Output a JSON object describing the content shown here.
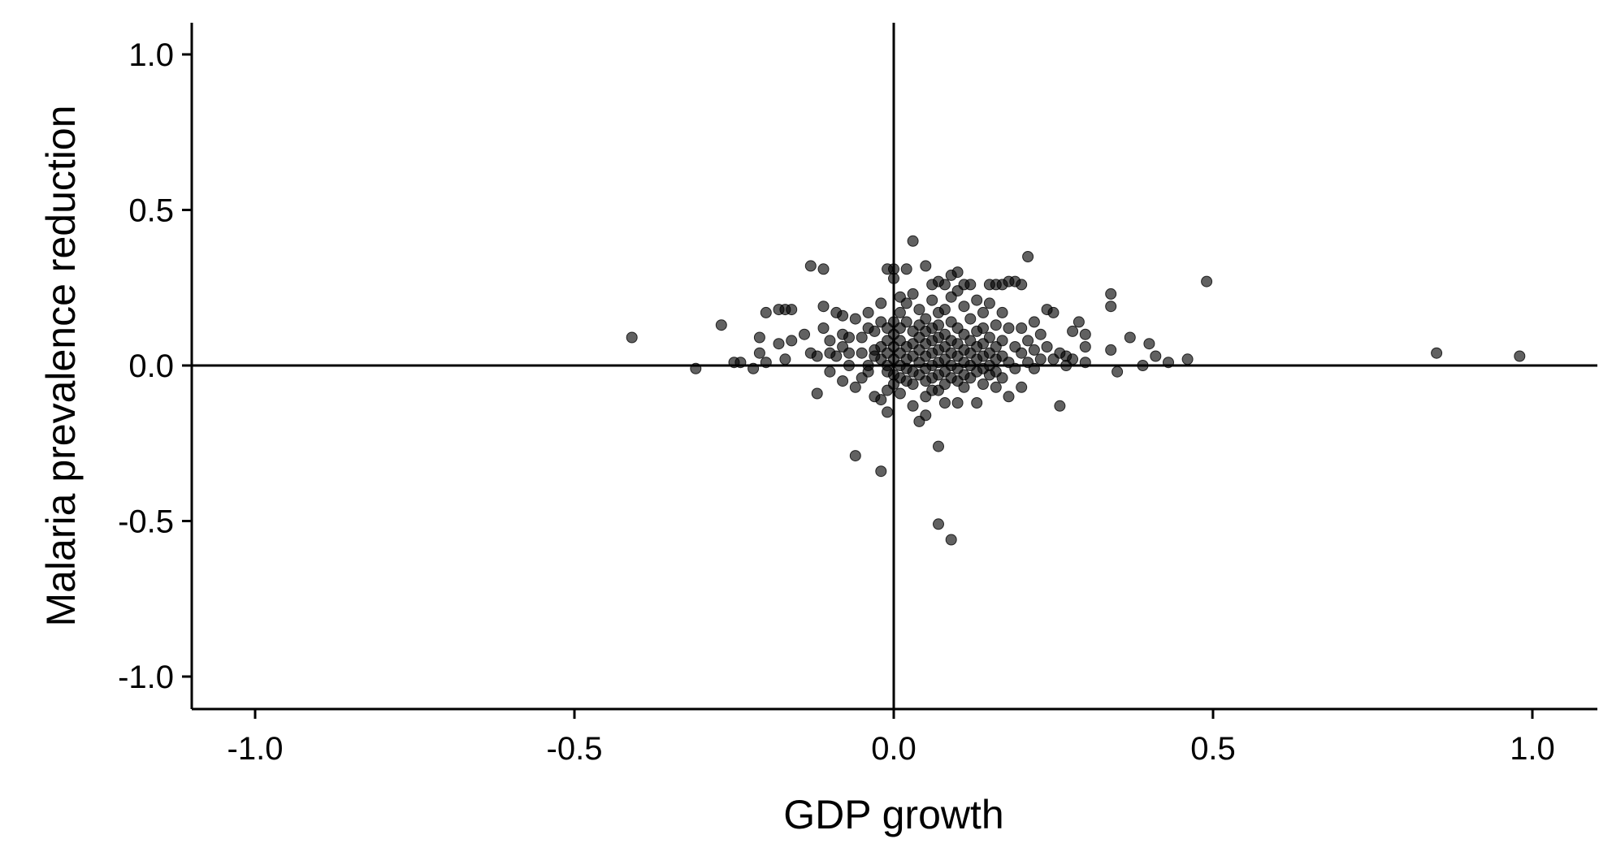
{
  "chart_data": {
    "type": "scatter",
    "title": "",
    "xlabel": "GDP growth",
    "ylabel": "Malaria prevalence reduction",
    "xlim": [
      -1.1,
      1.1
    ],
    "ylim": [
      -1.1,
      1.1
    ],
    "x_ticks": [
      -1.0,
      -0.5,
      0.0,
      0.5,
      1.0
    ],
    "y_ticks": [
      -1.0,
      -0.5,
      0.0,
      0.5,
      1.0
    ],
    "x_tick_labels": [
      "-1.0",
      "-0.5",
      "0.0",
      "0.5",
      "1.0"
    ],
    "y_tick_labels": [
      "-1.0",
      "-0.5",
      "0.0",
      "0.5",
      "1.0"
    ],
    "reference_lines": {
      "x": 0,
      "y": 0
    },
    "grid": false,
    "legend": "none",
    "point_color": "#000000",
    "points": [
      [
        -0.41,
        0.09
      ],
      [
        -0.31,
        -0.01
      ],
      [
        -0.27,
        0.13
      ],
      [
        -0.25,
        0.01
      ],
      [
        -0.24,
        0.01
      ],
      [
        -0.22,
        -0.01
      ],
      [
        -0.21,
        0.09
      ],
      [
        -0.21,
        0.04
      ],
      [
        -0.2,
        0.17
      ],
      [
        -0.2,
        0.01
      ],
      [
        -0.18,
        0.18
      ],
      [
        -0.18,
        0.07
      ],
      [
        -0.17,
        0.18
      ],
      [
        -0.17,
        0.02
      ],
      [
        -0.16,
        0.18
      ],
      [
        -0.16,
        0.08
      ],
      [
        -0.14,
        0.1
      ],
      [
        -0.13,
        0.32
      ],
      [
        -0.13,
        0.04
      ],
      [
        -0.12,
        0.03
      ],
      [
        -0.12,
        -0.09
      ],
      [
        -0.11,
        0.31
      ],
      [
        -0.11,
        0.19
      ],
      [
        -0.11,
        0.12
      ],
      [
        -0.1,
        0.08
      ],
      [
        -0.1,
        0.04
      ],
      [
        -0.1,
        -0.02
      ],
      [
        -0.09,
        0.03
      ],
      [
        -0.09,
        0.17
      ],
      [
        -0.08,
        0.16
      ],
      [
        -0.08,
        0.1
      ],
      [
        -0.08,
        0.06
      ],
      [
        -0.08,
        -0.05
      ],
      [
        -0.07,
        0.0
      ],
      [
        -0.07,
        0.09
      ],
      [
        -0.07,
        0.04
      ],
      [
        -0.06,
        0.15
      ],
      [
        -0.06,
        -0.07
      ],
      [
        -0.06,
        -0.29
      ],
      [
        -0.05,
        0.04
      ],
      [
        -0.05,
        0.09
      ],
      [
        -0.05,
        -0.04
      ],
      [
        -0.04,
        0.12
      ],
      [
        -0.04,
        0.17
      ],
      [
        -0.04,
        0.0
      ],
      [
        -0.04,
        -0.02
      ],
      [
        -0.03,
        0.11
      ],
      [
        -0.03,
        0.05
      ],
      [
        -0.03,
        0.03
      ],
      [
        -0.03,
        -0.1
      ],
      [
        -0.02,
        0.2
      ],
      [
        -0.02,
        0.14
      ],
      [
        -0.02,
        0.06
      ],
      [
        -0.02,
        0.02
      ],
      [
        -0.02,
        -0.11
      ],
      [
        -0.02,
        -0.34
      ],
      [
        -0.01,
        -0.08
      ],
      [
        -0.01,
        0.12
      ],
      [
        -0.01,
        0.08
      ],
      [
        -0.01,
        0.04
      ],
      [
        -0.01,
        0.0
      ],
      [
        -0.01,
        -0.02
      ],
      [
        -0.01,
        -0.15
      ],
      [
        -0.01,
        0.31
      ],
      [
        0.0,
        0.28
      ],
      [
        0.0,
        0.14
      ],
      [
        0.0,
        0.1
      ],
      [
        0.0,
        0.06
      ],
      [
        0.0,
        0.02
      ],
      [
        0.0,
        -0.03
      ],
      [
        0.0,
        -0.06
      ],
      [
        0.0,
        0.31
      ],
      [
        0.01,
        0.17
      ],
      [
        0.01,
        0.12
      ],
      [
        0.01,
        0.08
      ],
      [
        0.01,
        0.04
      ],
      [
        0.01,
        0.0
      ],
      [
        0.01,
        -0.04
      ],
      [
        0.01,
        -0.09
      ],
      [
        0.01,
        0.22
      ],
      [
        0.02,
        0.2
      ],
      [
        0.02,
        0.14
      ],
      [
        0.02,
        0.06
      ],
      [
        0.02,
        0.02
      ],
      [
        0.02,
        -0.01
      ],
      [
        0.02,
        -0.05
      ],
      [
        0.02,
        0.31
      ],
      [
        0.03,
        0.4
      ],
      [
        0.03,
        0.23
      ],
      [
        0.03,
        0.11
      ],
      [
        0.03,
        0.07
      ],
      [
        0.03,
        0.03
      ],
      [
        0.03,
        -0.02
      ],
      [
        0.03,
        -0.06
      ],
      [
        0.03,
        -0.13
      ],
      [
        0.04,
        0.18
      ],
      [
        0.04,
        0.13
      ],
      [
        0.04,
        0.09
      ],
      [
        0.04,
        0.05
      ],
      [
        0.04,
        0.01
      ],
      [
        0.04,
        -0.03
      ],
      [
        0.04,
        -0.18
      ],
      [
        0.05,
        0.32
      ],
      [
        0.05,
        0.15
      ],
      [
        0.05,
        0.11
      ],
      [
        0.05,
        0.07
      ],
      [
        0.05,
        0.03
      ],
      [
        0.05,
        -0.01
      ],
      [
        0.05,
        -0.05
      ],
      [
        0.05,
        -0.1
      ],
      [
        0.05,
        -0.16
      ],
      [
        0.06,
        0.26
      ],
      [
        0.06,
        0.21
      ],
      [
        0.06,
        0.12
      ],
      [
        0.06,
        0.08
      ],
      [
        0.06,
        0.04
      ],
      [
        0.06,
        0.0
      ],
      [
        0.06,
        -0.04
      ],
      [
        0.06,
        -0.08
      ],
      [
        0.07,
        0.27
      ],
      [
        0.07,
        0.17
      ],
      [
        0.07,
        0.13
      ],
      [
        0.07,
        0.09
      ],
      [
        0.07,
        0.05
      ],
      [
        0.07,
        0.01
      ],
      [
        0.07,
        -0.03
      ],
      [
        0.07,
        -0.08
      ],
      [
        0.07,
        -0.26
      ],
      [
        0.07,
        -0.51
      ],
      [
        0.08,
        0.26
      ],
      [
        0.08,
        0.18
      ],
      [
        0.08,
        0.1
      ],
      [
        0.08,
        0.06
      ],
      [
        0.08,
        0.02
      ],
      [
        0.08,
        -0.02
      ],
      [
        0.08,
        -0.06
      ],
      [
        0.08,
        -0.12
      ],
      [
        0.09,
        0.29
      ],
      [
        0.09,
        0.22
      ],
      [
        0.09,
        0.14
      ],
      [
        0.09,
        0.08
      ],
      [
        0.09,
        0.04
      ],
      [
        0.09,
        0.0
      ],
      [
        0.09,
        -0.04
      ],
      [
        0.09,
        -0.56
      ],
      [
        0.1,
        0.3
      ],
      [
        0.1,
        0.24
      ],
      [
        0.1,
        0.12
      ],
      [
        0.1,
        0.07
      ],
      [
        0.1,
        0.03
      ],
      [
        0.1,
        -0.01
      ],
      [
        0.1,
        -0.05
      ],
      [
        0.1,
        -0.12
      ],
      [
        0.11,
        0.26
      ],
      [
        0.11,
        0.19
      ],
      [
        0.11,
        0.1
      ],
      [
        0.11,
        0.05
      ],
      [
        0.11,
        0.01
      ],
      [
        0.11,
        -0.03
      ],
      [
        0.11,
        -0.07
      ],
      [
        0.12,
        0.26
      ],
      [
        0.12,
        0.15
      ],
      [
        0.12,
        0.08
      ],
      [
        0.12,
        0.04
      ],
      [
        0.12,
        0.0
      ],
      [
        0.12,
        -0.04
      ],
      [
        0.13,
        0.21
      ],
      [
        0.13,
        0.11
      ],
      [
        0.13,
        0.06
      ],
      [
        0.13,
        0.02
      ],
      [
        0.13,
        -0.02
      ],
      [
        0.13,
        -0.12
      ],
      [
        0.14,
        0.17
      ],
      [
        0.14,
        0.12
      ],
      [
        0.14,
        0.07
      ],
      [
        0.14,
        0.03
      ],
      [
        0.14,
        -0.01
      ],
      [
        0.14,
        -0.06
      ],
      [
        0.15,
        0.26
      ],
      [
        0.15,
        0.2
      ],
      [
        0.15,
        0.09
      ],
      [
        0.15,
        0.04
      ],
      [
        0.15,
        0.0
      ],
      [
        0.15,
        -0.03
      ],
      [
        0.16,
        0.26
      ],
      [
        0.16,
        0.13
      ],
      [
        0.16,
        0.06
      ],
      [
        0.16,
        0.02
      ],
      [
        0.16,
        -0.02
      ],
      [
        0.16,
        -0.07
      ],
      [
        0.17,
        0.26
      ],
      [
        0.17,
        0.17
      ],
      [
        0.17,
        0.08
      ],
      [
        0.17,
        0.03
      ],
      [
        0.17,
        -0.04
      ],
      [
        0.18,
        0.27
      ],
      [
        0.18,
        0.12
      ],
      [
        0.18,
        0.01
      ],
      [
        0.18,
        -0.1
      ],
      [
        0.19,
        0.27
      ],
      [
        0.19,
        0.06
      ],
      [
        0.19,
        -0.01
      ],
      [
        0.2,
        0.26
      ],
      [
        0.2,
        0.12
      ],
      [
        0.2,
        0.04
      ],
      [
        0.2,
        -0.07
      ],
      [
        0.21,
        0.35
      ],
      [
        0.21,
        0.08
      ],
      [
        0.21,
        0.01
      ],
      [
        0.22,
        0.14
      ],
      [
        0.22,
        0.05
      ],
      [
        0.22,
        -0.01
      ],
      [
        0.23,
        0.1
      ],
      [
        0.23,
        0.02
      ],
      [
        0.24,
        0.18
      ],
      [
        0.24,
        0.06
      ],
      [
        0.25,
        0.17
      ],
      [
        0.25,
        0.02
      ],
      [
        0.26,
        0.04
      ],
      [
        0.26,
        -0.13
      ],
      [
        0.27,
        0.0
      ],
      [
        0.27,
        0.03
      ],
      [
        0.28,
        0.11
      ],
      [
        0.28,
        0.02
      ],
      [
        0.29,
        0.14
      ],
      [
        0.3,
        0.06
      ],
      [
        0.3,
        0.1
      ],
      [
        0.3,
        0.01
      ],
      [
        0.34,
        0.05
      ],
      [
        0.34,
        0.23
      ],
      [
        0.34,
        0.19
      ],
      [
        0.35,
        -0.02
      ],
      [
        0.37,
        0.09
      ],
      [
        0.39,
        0.0
      ],
      [
        0.4,
        0.07
      ],
      [
        0.41,
        0.03
      ],
      [
        0.43,
        0.01
      ],
      [
        0.46,
        0.02
      ],
      [
        0.49,
        0.27
      ],
      [
        0.85,
        0.04
      ],
      [
        0.98,
        0.03
      ]
    ]
  }
}
